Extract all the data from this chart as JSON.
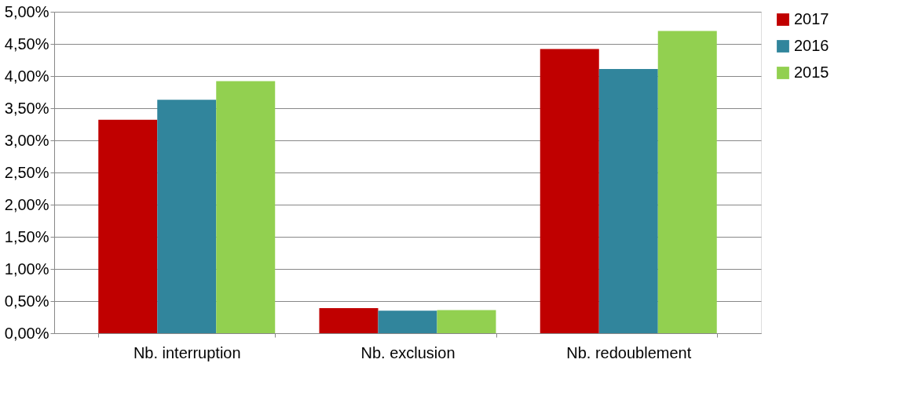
{
  "chart_data": {
    "type": "bar",
    "categories": [
      "Nb. interruption",
      "Nb. exclusion",
      "Nb. redoublement"
    ],
    "series": [
      {
        "name": "2017",
        "color": "#c00000",
        "values": [
          3.32,
          0.39,
          4.42
        ]
      },
      {
        "name": "2016",
        "color": "#31859c",
        "values": [
          3.63,
          0.35,
          4.11
        ]
      },
      {
        "name": "2015",
        "color": "#92d050",
        "values": [
          3.92,
          0.36,
          4.7
        ]
      }
    ],
    "ylim": [
      0,
      5
    ],
    "yticks": [
      {
        "value": 0,
        "label": "0,00%"
      },
      {
        "value": 0.5,
        "label": "0,50%"
      },
      {
        "value": 1,
        "label": "1,00%"
      },
      {
        "value": 1.5,
        "label": "1,50%"
      },
      {
        "value": 2,
        "label": "2,00%"
      },
      {
        "value": 2.5,
        "label": "2,50%"
      },
      {
        "value": 3,
        "label": "3,00%"
      },
      {
        "value": 3.5,
        "label": "3,50%"
      },
      {
        "value": 4,
        "label": "4,00%"
      },
      {
        "value": 4.5,
        "label": "4,50%"
      },
      {
        "value": 5,
        "label": "5,00%"
      }
    ],
    "grid": "y",
    "legend": "right"
  }
}
